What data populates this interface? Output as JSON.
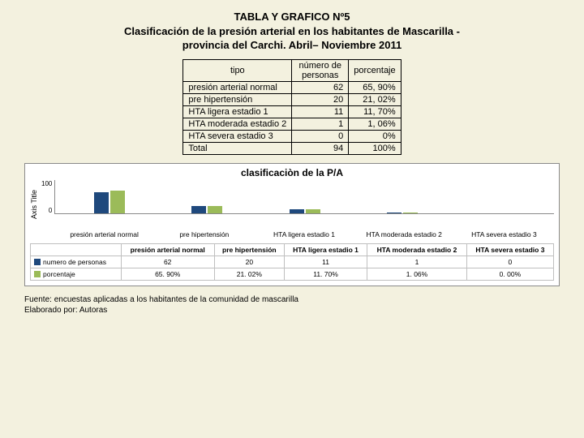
{
  "title": {
    "line1": "TABLA Y GRAFICO Nº5",
    "line2": "Clasificación de la presión arterial en los habitantes de Mascarilla -",
    "line3": "provincia del Carchi. Abril– Noviembre 2011"
  },
  "table": {
    "headers": {
      "tipo": "tipo",
      "numero": "número de personas",
      "porcentaje": "porcentaje"
    },
    "rows": [
      {
        "label": "presión arterial normal",
        "n": "62",
        "pct": "65, 90%"
      },
      {
        "label": "pre hipertensión",
        "n": "20",
        "pct": "21, 02%"
      },
      {
        "label": "HTA ligera estadio 1",
        "n": "11",
        "pct": "11, 70%"
      },
      {
        "label": "HTA moderada estadio 2",
        "n": "1",
        "pct": "1, 06%"
      },
      {
        "label": "HTA severa estadio 3",
        "n": "0",
        "pct": "0%"
      },
      {
        "label": "Total",
        "n": "94",
        "pct": "100%"
      }
    ]
  },
  "chart": {
    "title": "clasificaciòn de la P/A",
    "ylabel": "Axis Title",
    "ylim": [
      0,
      100
    ],
    "yticks": [
      "100",
      "0"
    ],
    "categories": [
      "presión arterial normal",
      "pre hipertensión",
      "HTA ligera estadio 1",
      "HTA moderada estadio 2",
      "HTA severa estadio 3"
    ],
    "series": [
      {
        "name": "numero de personas",
        "color": "#1f497d",
        "values": [
          62,
          20,
          11,
          1,
          0
        ],
        "display": [
          "62",
          "20",
          "11",
          "1",
          "0"
        ]
      },
      {
        "name": "porcentaje",
        "color": "#9bbb59",
        "values": [
          65.9,
          21.02,
          11.7,
          1.06,
          0.0
        ],
        "display": [
          "65. 90%",
          "21. 02%",
          "11. 70%",
          "1. 06%",
          "0. 00%"
        ]
      }
    ],
    "legend_headers": [
      "presión arterial normal",
      "pre hipertensión",
      "HTA ligera estadio 1",
      "HTA moderada estadio 2",
      "HTA severa estadio 3"
    ]
  },
  "footer": {
    "line1": "Fuente: encuestas aplicadas a los habitantes de la comunidad de mascarilla",
    "line2": "Elaborado por: Autoras"
  }
}
